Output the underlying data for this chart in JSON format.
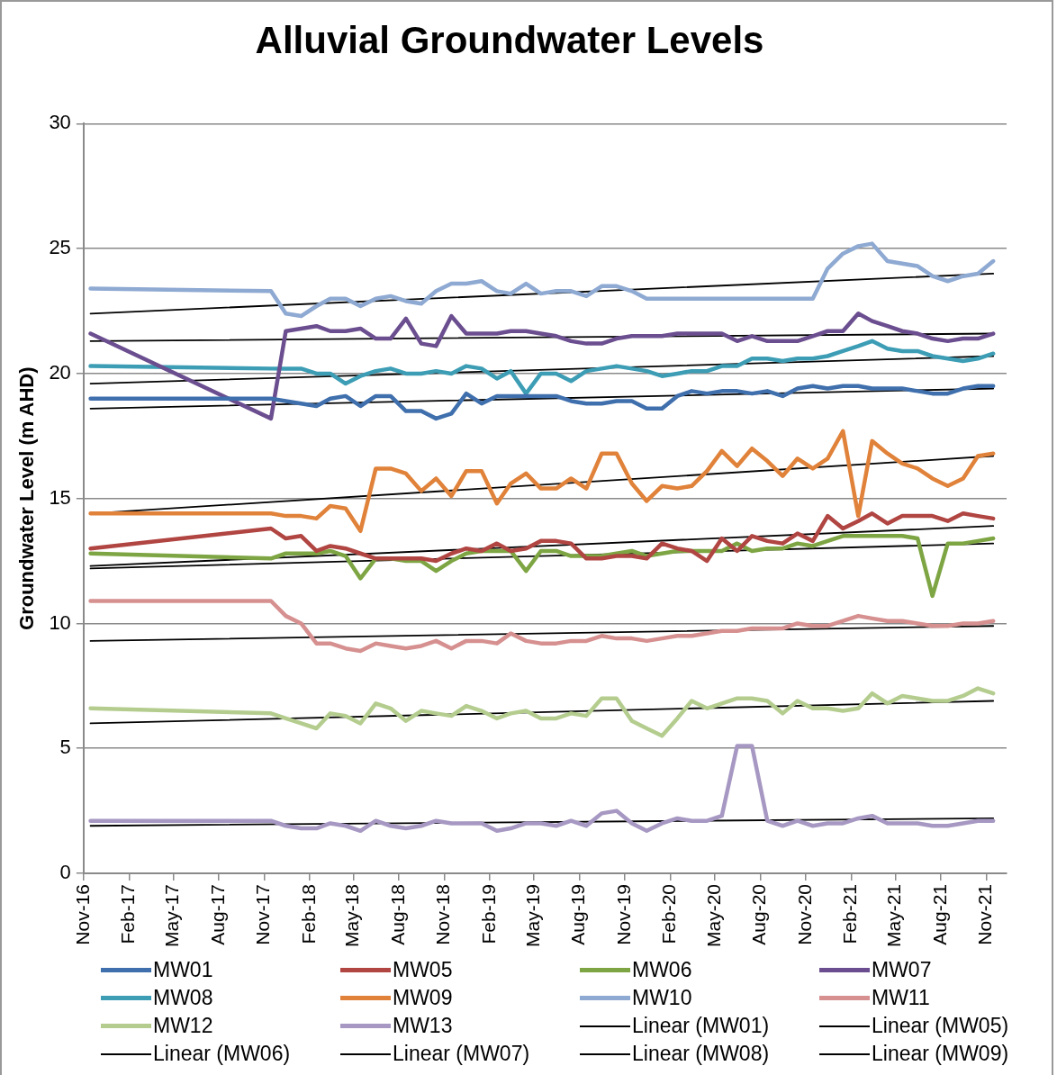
{
  "chart_data": {
    "type": "line",
    "title": "Alluvial Groundwater Levels",
    "ylabel": "Groundwater Level (m AHD)",
    "x": [
      "2016-11-15",
      "2017-11-15",
      "2017-12-15",
      "2018-01-15",
      "2018-02-15",
      "2018-03-15",
      "2018-04-15",
      "2018-05-15",
      "2018-06-15",
      "2018-07-15",
      "2018-08-15",
      "2018-09-15",
      "2018-10-15",
      "2018-11-15",
      "2018-12-15",
      "2019-01-15",
      "2019-02-15",
      "2019-03-15",
      "2019-04-15",
      "2019-05-15",
      "2019-06-15",
      "2019-07-15",
      "2019-08-15",
      "2019-09-15",
      "2019-10-15",
      "2019-11-15",
      "2019-12-15",
      "2020-01-15",
      "2020-02-15",
      "2020-03-15",
      "2020-04-15",
      "2020-05-15",
      "2020-06-15",
      "2020-07-15",
      "2020-08-15",
      "2020-09-15",
      "2020-10-15",
      "2020-11-15",
      "2020-12-15",
      "2021-01-15",
      "2021-02-15",
      "2021-03-15",
      "2021-04-15",
      "2021-05-15",
      "2021-06-15",
      "2021-07-15",
      "2021-08-15",
      "2021-09-15",
      "2021-10-15",
      "2021-11-15"
    ],
    "series": [
      {
        "name": "MW01",
        "color": "#3f6fac",
        "values": [
          19.0,
          19.0,
          18.9,
          18.8,
          18.7,
          19.0,
          19.1,
          18.7,
          19.1,
          19.1,
          18.5,
          18.5,
          18.2,
          18.4,
          19.2,
          18.8,
          19.1,
          19.1,
          19.1,
          19.1,
          19.1,
          18.9,
          18.8,
          18.8,
          18.9,
          18.9,
          18.6,
          18.6,
          19.1,
          19.3,
          19.2,
          19.3,
          19.3,
          19.2,
          19.3,
          19.1,
          19.4,
          19.5,
          19.4,
          19.5,
          19.5,
          19.4,
          19.4,
          19.4,
          19.3,
          19.2,
          19.2,
          19.4,
          19.5,
          19.5
        ]
      },
      {
        "name": "MW05",
        "color": "#b04542",
        "values": [
          13.0,
          13.8,
          13.4,
          13.5,
          12.9,
          13.1,
          13.0,
          12.8,
          12.6,
          12.6,
          12.6,
          12.6,
          12.5,
          12.8,
          13.0,
          12.9,
          13.2,
          12.9,
          13.0,
          13.3,
          13.3,
          13.2,
          12.6,
          12.6,
          12.7,
          12.7,
          12.6,
          13.2,
          13.0,
          12.9,
          12.5,
          13.4,
          12.9,
          13.5,
          13.3,
          13.2,
          13.6,
          13.3,
          14.3,
          13.8,
          14.1,
          14.4,
          14.0,
          14.3,
          14.3,
          14.3,
          14.1,
          14.4,
          14.3,
          14.2
        ]
      },
      {
        "name": "MW06",
        "color": "#7ea543",
        "values": [
          12.8,
          12.6,
          12.8,
          12.8,
          12.8,
          12.9,
          12.7,
          11.8,
          12.6,
          12.6,
          12.5,
          12.5,
          12.1,
          12.5,
          12.8,
          12.9,
          12.9,
          12.9,
          12.1,
          12.9,
          12.9,
          12.7,
          12.7,
          12.7,
          12.8,
          12.9,
          12.7,
          12.8,
          12.9,
          12.9,
          12.9,
          12.9,
          13.2,
          12.9,
          13.0,
          13.0,
          13.2,
          13.1,
          13.3,
          13.5,
          13.5,
          13.5,
          13.5,
          13.5,
          13.4,
          11.1,
          13.2,
          13.2,
          13.3,
          13.4
        ]
      },
      {
        "name": "MW07",
        "color": "#6b4e8f",
        "values": [
          21.6,
          18.2,
          21.7,
          21.8,
          21.9,
          21.7,
          21.7,
          21.8,
          21.4,
          21.4,
          22.2,
          21.2,
          21.1,
          22.3,
          21.6,
          21.6,
          21.6,
          21.7,
          21.7,
          21.6,
          21.5,
          21.3,
          21.2,
          21.2,
          21.4,
          21.5,
          21.5,
          21.5,
          21.6,
          21.6,
          21.6,
          21.6,
          21.3,
          21.5,
          21.3,
          21.3,
          21.3,
          21.5,
          21.7,
          21.7,
          22.4,
          22.1,
          21.9,
          21.7,
          21.6,
          21.4,
          21.3,
          21.4,
          21.4,
          21.6
        ]
      },
      {
        "name": "MW08",
        "color": "#3c9db5",
        "values": [
          20.3,
          20.2,
          20.2,
          20.2,
          20.0,
          20.0,
          19.6,
          19.9,
          20.1,
          20.2,
          20.0,
          20.0,
          20.1,
          20.0,
          20.3,
          20.2,
          19.8,
          20.1,
          19.2,
          20.0,
          20.0,
          19.7,
          20.1,
          20.2,
          20.3,
          20.2,
          20.1,
          19.9,
          20.0,
          20.1,
          20.1,
          20.3,
          20.3,
          20.6,
          20.6,
          20.5,
          20.6,
          20.6,
          20.7,
          20.9,
          21.1,
          21.3,
          21.0,
          20.9,
          20.9,
          20.7,
          20.6,
          20.5,
          20.6,
          20.8
        ]
      },
      {
        "name": "MW09",
        "color": "#e0823a",
        "values": [
          14.4,
          14.4,
          14.3,
          14.3,
          14.2,
          14.7,
          14.6,
          13.7,
          16.2,
          16.2,
          16.0,
          15.3,
          15.8,
          15.1,
          16.1,
          16.1,
          14.8,
          15.6,
          16.0,
          15.4,
          15.4,
          15.8,
          15.4,
          16.8,
          16.8,
          15.6,
          14.9,
          15.5,
          15.4,
          15.5,
          16.1,
          16.9,
          16.3,
          17.0,
          16.5,
          15.9,
          16.6,
          16.2,
          16.6,
          17.7,
          14.3,
          17.3,
          16.8,
          16.4,
          16.2,
          15.8,
          15.5,
          15.8,
          16.7,
          16.8
        ]
      },
      {
        "name": "MW10",
        "color": "#8ea9d2",
        "values": [
          23.4,
          23.3,
          22.4,
          22.3,
          22.7,
          23.0,
          23.0,
          22.7,
          23.0,
          23.1,
          22.9,
          22.8,
          23.3,
          23.6,
          23.6,
          23.7,
          23.3,
          23.2,
          23.6,
          23.2,
          23.3,
          23.3,
          23.1,
          23.5,
          23.5,
          23.3,
          23.0,
          23.0,
          23.0,
          23.0,
          23.0,
          23.0,
          23.0,
          23.0,
          23.0,
          23.0,
          23.0,
          23.0,
          24.2,
          24.8,
          25.1,
          25.2,
          24.5,
          24.4,
          24.3,
          23.9,
          23.7,
          23.9,
          24.0,
          24.5
        ]
      },
      {
        "name": "MW11",
        "color": "#d69090",
        "values": [
          10.9,
          10.9,
          10.3,
          10.0,
          9.2,
          9.2,
          9.0,
          8.9,
          9.2,
          9.1,
          9.0,
          9.1,
          9.3,
          9.0,
          9.3,
          9.3,
          9.2,
          9.6,
          9.3,
          9.2,
          9.2,
          9.3,
          9.3,
          9.5,
          9.4,
          9.4,
          9.3,
          9.4,
          9.5,
          9.5,
          9.6,
          9.7,
          9.7,
          9.8,
          9.8,
          9.8,
          10.0,
          9.9,
          9.9,
          10.1,
          10.3,
          10.2,
          10.1,
          10.1,
          10.0,
          9.9,
          9.9,
          10.0,
          10.0,
          10.1
        ]
      },
      {
        "name": "MW12",
        "color": "#b4cd8f",
        "values": [
          6.6,
          6.4,
          6.2,
          6.0,
          5.8,
          6.4,
          6.3,
          6.0,
          6.8,
          6.6,
          6.1,
          6.5,
          6.4,
          6.3,
          6.7,
          6.5,
          6.2,
          6.4,
          6.5,
          6.2,
          6.2,
          6.4,
          6.3,
          7.0,
          7.0,
          6.1,
          5.8,
          5.5,
          6.2,
          6.9,
          6.6,
          6.8,
          7.0,
          7.0,
          6.9,
          6.4,
          6.9,
          6.6,
          6.6,
          6.5,
          6.6,
          7.2,
          6.8,
          7.1,
          7.0,
          6.9,
          6.9,
          7.1,
          7.4,
          7.2
        ]
      },
      {
        "name": "MW13",
        "color": "#a698c2",
        "values": [
          2.1,
          2.1,
          1.9,
          1.8,
          1.8,
          2.0,
          1.9,
          1.7,
          2.1,
          1.9,
          1.8,
          1.9,
          2.1,
          2.0,
          2.0,
          2.0,
          1.7,
          1.8,
          2.0,
          2.0,
          1.9,
          2.1,
          1.9,
          2.4,
          2.5,
          2.0,
          1.7,
          2.0,
          2.2,
          2.1,
          2.1,
          2.3,
          5.1,
          5.1,
          2.1,
          1.9,
          2.1,
          1.9,
          2.0,
          2.0,
          2.2,
          2.3,
          2.0,
          2.0,
          2.0,
          1.9,
          1.9,
          2.0,
          2.1,
          2.1
        ]
      },
      {
        "name": "Linear (MW01)",
        "color": "#000000",
        "x": [
          "2016-11-15",
          "2021-11-15"
        ],
        "values": [
          18.6,
          19.4
        ]
      },
      {
        "name": "Linear (MW05)",
        "color": "#000000",
        "x": [
          "2016-11-15",
          "2021-11-15"
        ],
        "values": [
          12.3,
          13.9
        ]
      },
      {
        "name": "Linear (MW06)",
        "color": "#000000",
        "x": [
          "2016-11-15",
          "2021-11-15"
        ],
        "values": [
          12.2,
          13.2
        ]
      },
      {
        "name": "Linear (MW07)",
        "color": "#000000",
        "x": [
          "2016-11-15",
          "2021-11-15"
        ],
        "values": [
          21.3,
          21.6
        ]
      },
      {
        "name": "Linear (MW08)",
        "color": "#000000",
        "x": [
          "2016-11-15",
          "2021-11-15"
        ],
        "values": [
          19.6,
          20.7
        ]
      },
      {
        "name": "Linear (MW09)",
        "color": "#000000",
        "x": [
          "2016-11-15",
          "2021-11-15"
        ],
        "values": [
          14.4,
          16.7
        ]
      },
      {
        "color": "#000000",
        "x": [
          "2016-11-15",
          "2021-11-15"
        ],
        "values": [
          22.4,
          24.0
        ]
      },
      {
        "color": "#000000",
        "x": [
          "2016-11-15",
          "2021-11-15"
        ],
        "values": [
          9.3,
          9.9
        ]
      },
      {
        "color": "#000000",
        "x": [
          "2016-11-15",
          "2021-11-15"
        ],
        "values": [
          6.0,
          6.9
        ]
      },
      {
        "color": "#000000",
        "x": [
          "2016-11-15",
          "2021-11-15"
        ],
        "values": [
          1.9,
          2.2
        ]
      }
    ],
    "xlim": [
      "2016-11-01",
      "2021-12-12"
    ],
    "xticks": [
      {
        "value": "2016-11-01",
        "label": "Nov-16"
      },
      {
        "value": "2017-02-01",
        "label": "Feb-17"
      },
      {
        "value": "2017-05-01",
        "label": "May-17"
      },
      {
        "value": "2017-08-01",
        "label": "Aug-17"
      },
      {
        "value": "2017-11-01",
        "label": "Nov-17"
      },
      {
        "value": "2018-02-01",
        "label": "Feb-18"
      },
      {
        "value": "2018-05-01",
        "label": "May-18"
      },
      {
        "value": "2018-08-01",
        "label": "Aug-18"
      },
      {
        "value": "2018-11-01",
        "label": "Nov-18"
      },
      {
        "value": "2019-02-01",
        "label": "Feb-19"
      },
      {
        "value": "2019-05-01",
        "label": "May-19"
      },
      {
        "value": "2019-08-01",
        "label": "Aug-19"
      },
      {
        "value": "2019-11-01",
        "label": "Nov-19"
      },
      {
        "value": "2020-02-01",
        "label": "Feb-20"
      },
      {
        "value": "2020-05-01",
        "label": "May-20"
      },
      {
        "value": "2020-08-01",
        "label": "Aug-20"
      },
      {
        "value": "2020-11-01",
        "label": "Nov-20"
      },
      {
        "value": "2021-02-01",
        "label": "Feb-21"
      },
      {
        "value": "2021-05-01",
        "label": "May-21"
      },
      {
        "value": "2021-08-01",
        "label": "Aug-21"
      },
      {
        "value": "2021-11-01",
        "label": "Nov-21"
      }
    ],
    "ylim": [
      0,
      30
    ],
    "yticks": [
      0,
      5,
      10,
      15,
      20,
      25,
      30
    ],
    "grid": "y",
    "legend": "bottom",
    "marker": "none",
    "line_style": "solid"
  }
}
